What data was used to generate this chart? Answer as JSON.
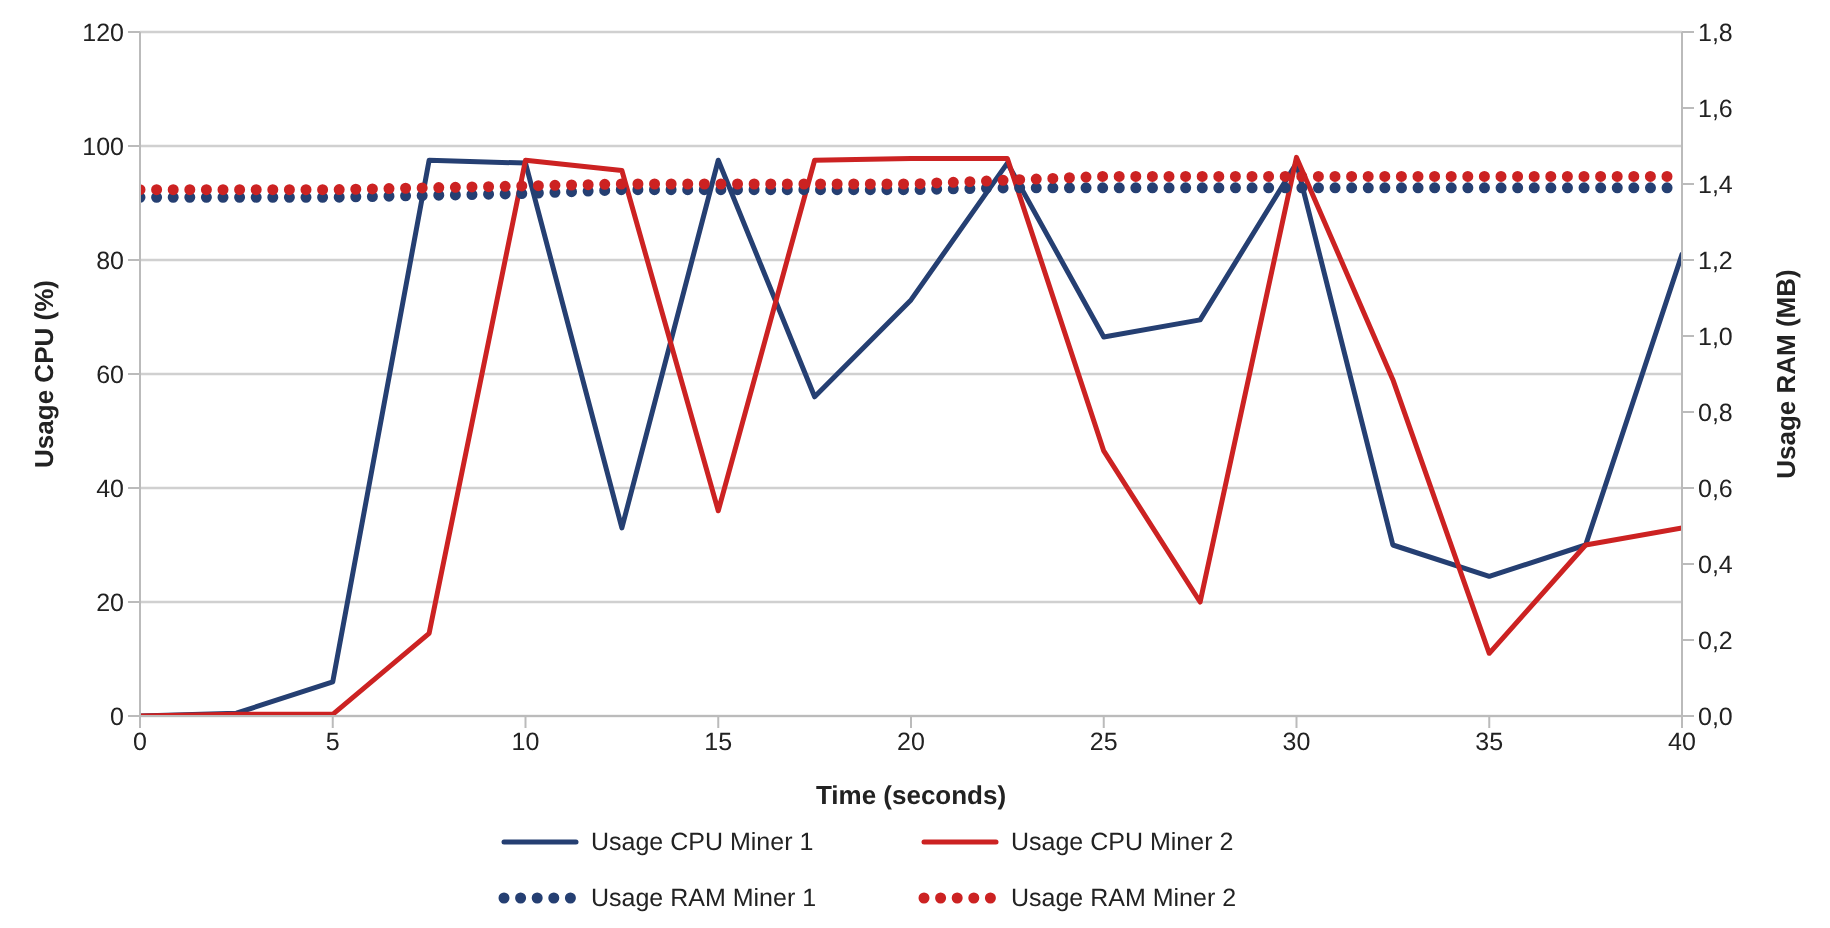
{
  "chart_data": {
    "type": "line",
    "x": [
      0,
      2.5,
      5,
      7.5,
      10,
      12.5,
      15,
      17.5,
      20,
      22.5,
      25,
      27.5,
      30,
      32.5,
      35,
      37.5,
      40
    ],
    "xlabel": "Time (seconds)",
    "ylabel": "Usage CPU (%)",
    "y2label": "Usage RAM (MB)",
    "xlim": [
      0,
      40
    ],
    "xticks": [
      0,
      5,
      10,
      15,
      20,
      25,
      30,
      35,
      40
    ],
    "ylim": [
      0,
      120
    ],
    "yticks": [
      0,
      20,
      40,
      60,
      80,
      100,
      120
    ],
    "y2lim": [
      0,
      1.8
    ],
    "y2ticks": [
      {
        "value": 0,
        "label": "0,0"
      },
      {
        "value": 0.2,
        "label": "0,2"
      },
      {
        "value": 0.4,
        "label": "0,4"
      },
      {
        "value": 0.6,
        "label": "0,6"
      },
      {
        "value": 0.8,
        "label": "0,8"
      },
      {
        "value": 1,
        "label": "1,0"
      },
      {
        "value": 1.2,
        "label": "1,2"
      },
      {
        "value": 1.4,
        "label": "1,4"
      },
      {
        "value": 1.6,
        "label": "1,6"
      },
      {
        "value": 1.8,
        "label": "1,8"
      }
    ],
    "grid": "y",
    "legend": "bottom",
    "marker": "none",
    "series": [
      {
        "name": "Usage CPU Miner 1",
        "color": "#253f72",
        "line_style": "solid",
        "values": [
          0,
          0.5,
          6,
          97.5,
          97,
          33,
          97.5,
          56,
          73,
          97,
          66.5,
          69.5,
          97,
          30,
          24.5,
          30,
          81
        ]
      },
      {
        "name": "Usage CPU Miner 2",
        "color": "#cc2222",
        "line_style": "solid",
        "values": [
          0,
          0.3,
          0.3,
          14.5,
          97.5,
          95.7,
          36,
          97.5,
          97.8,
          97.8,
          46.5,
          20,
          98,
          59,
          11,
          30,
          33
        ]
      },
      {
        "name": "Usage RAM Miner 1",
        "color": "#253f72",
        "line_style": "dotted",
        "axis": "y2",
        "values": [
          1.365,
          1.365,
          1.365,
          1.37,
          1.375,
          1.385,
          1.385,
          1.385,
          1.385,
          1.39,
          1.39,
          1.39,
          1.39,
          1.39,
          1.39,
          1.39,
          1.39
        ]
      },
      {
        "name": "Usage RAM Miner 2",
        "color": "#cc2222",
        "line_style": "dotted",
        "axis": "y2",
        "values": [
          1.385,
          1.385,
          1.385,
          1.39,
          1.395,
          1.4,
          1.4,
          1.4,
          1.4,
          1.41,
          1.42,
          1.42,
          1.42,
          1.42,
          1.42,
          1.42,
          1.42
        ]
      }
    ]
  }
}
